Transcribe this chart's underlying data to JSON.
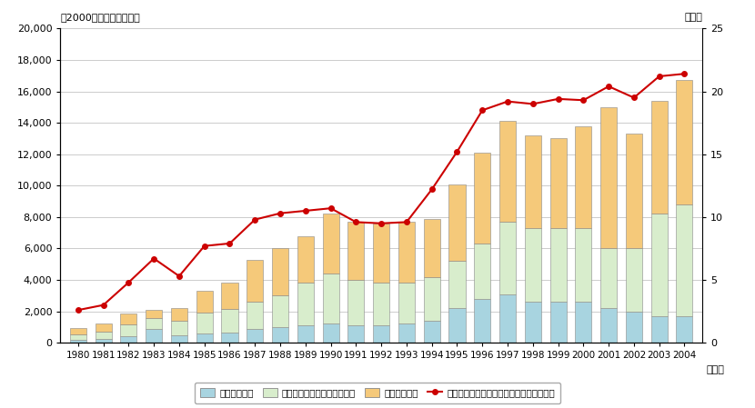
{
  "years": [
    1980,
    1981,
    1982,
    1983,
    1984,
    1985,
    1986,
    1987,
    1988,
    1989,
    1990,
    1991,
    1992,
    1993,
    1994,
    1995,
    1996,
    1997,
    1998,
    1999,
    2000,
    2001,
    2002,
    2003,
    2004
  ],
  "telecom": [
    200,
    250,
    400,
    900,
    500,
    600,
    650,
    900,
    1000,
    1100,
    1200,
    1100,
    1100,
    1200,
    1400,
    2200,
    2800,
    3100,
    2600,
    2600,
    2600,
    2200,
    2000,
    1700,
    1700
  ],
  "computer": [
    350,
    450,
    750,
    700,
    900,
    1300,
    1500,
    1700,
    2000,
    2700,
    3200,
    2900,
    2700,
    2600,
    2800,
    3000,
    3500,
    4600,
    4700,
    4700,
    4700,
    3800,
    4000,
    6500,
    7100
  ],
  "software": [
    400,
    500,
    700,
    500,
    800,
    1400,
    1700,
    2700,
    3000,
    3000,
    3800,
    3700,
    3800,
    3900,
    3700,
    4900,
    5800,
    6400,
    5900,
    5700,
    6500,
    9000,
    7300,
    7200,
    7900
  ],
  "ratio": [
    2.6,
    3.0,
    4.8,
    6.7,
    5.3,
    7.7,
    7.9,
    9.8,
    10.3,
    10.5,
    10.7,
    9.6,
    9.5,
    9.6,
    12.2,
    15.2,
    18.5,
    19.2,
    19.0,
    19.4,
    19.3,
    20.4,
    19.5,
    21.2,
    21.4
  ],
  "bar_color_telecom": "#a8d4e0",
  "bar_color_computer": "#d8edcc",
  "bar_color_software": "#f5c97a",
  "line_color": "#cc0000",
  "ylim_left": [
    0,
    20000
  ],
  "ylim_right": [
    0,
    25
  ],
  "yticks_left": [
    0,
    2000,
    4000,
    6000,
    8000,
    10000,
    12000,
    14000,
    16000,
    18000,
    20000
  ],
  "yticks_right": [
    0,
    5,
    10,
    15,
    20,
    25
  ],
  "ylabel_left": "（2000年価格、十億円）",
  "ylabel_right": "（％）",
  "xlabel_suffix": "（年）",
  "legend_telecom": "電気通信機器",
  "legend_computer": "電子計算機本体・同付属装置",
  "legend_software": "ソフトウェア",
  "legend_ratio": "民間企業設備投資に占める情報化投資比率",
  "background_color": "#ffffff",
  "grid_color": "#cccccc"
}
